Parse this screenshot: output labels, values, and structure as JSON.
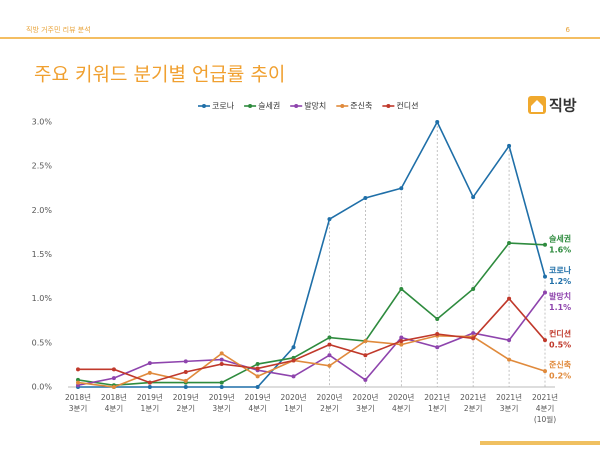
{
  "header": {
    "section": "직방 거주민 리뷰 분석",
    "page": "6",
    "logo": "직방"
  },
  "chart_data": {
    "type": "line",
    "title": "주요 키워드 분기별 언급률 추이",
    "categories": [
      [
        "2018년",
        "3분기"
      ],
      [
        "2018년",
        "4분기"
      ],
      [
        "2019년",
        "1분기"
      ],
      [
        "2019년",
        "2분기"
      ],
      [
        "2019년",
        "3분기"
      ],
      [
        "2019년",
        "4분기"
      ],
      [
        "2020년",
        "1분기"
      ],
      [
        "2020년",
        "2분기"
      ],
      [
        "2020년",
        "3분기"
      ],
      [
        "2020년",
        "4분기"
      ],
      [
        "2021년",
        "1분기"
      ],
      [
        "2021년",
        "2분기"
      ],
      [
        "2021년",
        "3분기"
      ],
      [
        "2021년",
        "4분기",
        "(10월)"
      ]
    ],
    "series": [
      {
        "name": "코로나",
        "color": "#1f6fa8",
        "values": [
          0,
          0,
          0,
          0,
          0,
          0,
          0.45,
          1.9,
          2.14,
          2.25,
          3.0,
          2.15,
          2.73,
          1.25
        ],
        "end_value_label": "1.2%"
      },
      {
        "name": "슬세권",
        "color": "#2e8b3e",
        "values": [
          0.08,
          0.02,
          0.05,
          0.05,
          0.05,
          0.26,
          0.33,
          0.56,
          0.52,
          1.11,
          0.77,
          1.11,
          1.63,
          1.61
        ],
        "end_value_label": "1.6%"
      },
      {
        "name": "발망치",
        "color": "#8e44ad",
        "values": [
          0.02,
          0.1,
          0.27,
          0.29,
          0.31,
          0.19,
          0.12,
          0.36,
          0.08,
          0.56,
          0.45,
          0.61,
          0.53,
          1.07
        ],
        "end_value_label": "1.1%"
      },
      {
        "name": "준신축",
        "color": "#e08a3c",
        "values": [
          0.05,
          0,
          0.16,
          0.07,
          0.38,
          0.12,
          0.3,
          0.24,
          0.52,
          0.48,
          0.58,
          0.57,
          0.31,
          0.18
        ],
        "end_value_label": "0.2%"
      },
      {
        "name": "컨디션",
        "color": "#c0392b",
        "values": [
          0.2,
          0.2,
          0.05,
          0.17,
          0.26,
          0.21,
          0.3,
          0.48,
          0.36,
          0.52,
          0.6,
          0.55,
          1.0,
          0.53
        ],
        "end_value_label": "0.5%"
      }
    ],
    "ylim": [
      0,
      3.0
    ],
    "yticks": [
      {
        "value": 0,
        "label": "0.0%"
      },
      {
        "value": 0.5,
        "label": "0.5%"
      },
      {
        "value": 1.0,
        "label": "1.0%"
      },
      {
        "value": 1.5,
        "label": "1.5%"
      },
      {
        "value": 2.0,
        "label": "2.0%"
      },
      {
        "value": 2.5,
        "label": "2.5%"
      },
      {
        "value": 3.0,
        "label": "3.0%"
      }
    ]
  }
}
